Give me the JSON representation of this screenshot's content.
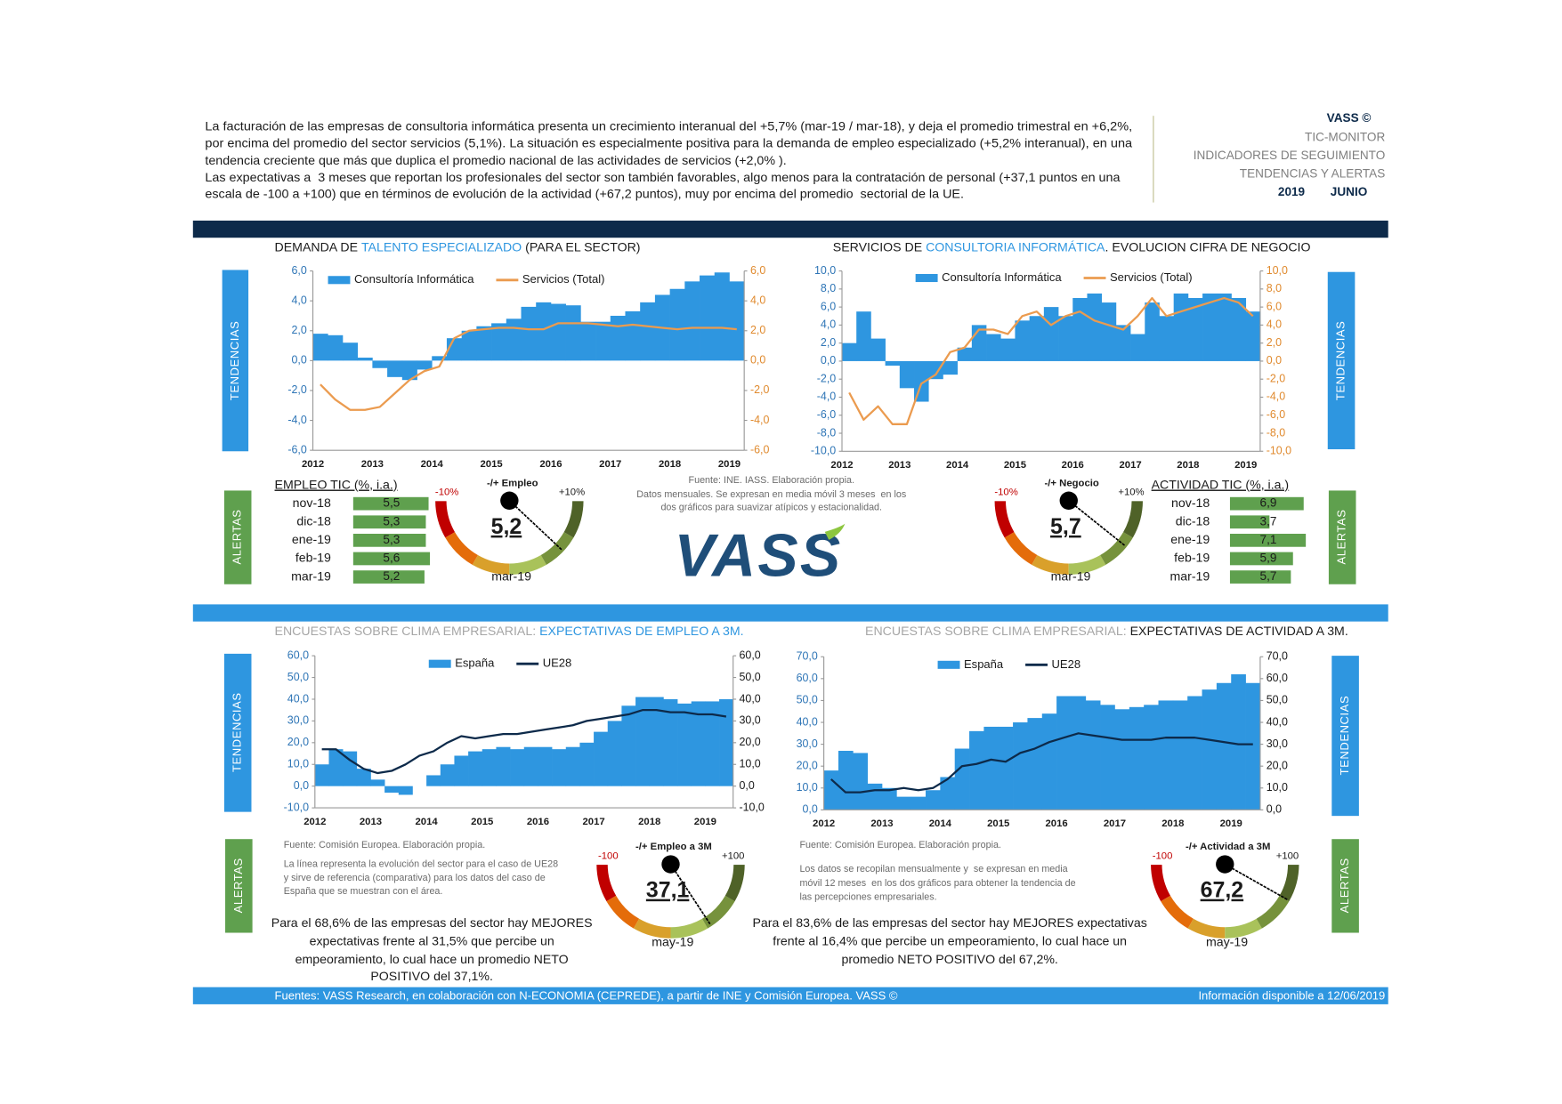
{
  "header": {
    "intro": [
      "La facturación de las empresas de consultoria informática presenta un crecimiento interanual del +5,7% (mar-19 / mar-18), y deja el promedio trimestral en +6,2%,",
      "por encima del promedio del sector servicios (5,1%). La situación es especialmente positiva para la demanda de empleo especializado (+5,2% interanual), en una",
      "tendencia creciente que más que duplica el promedio nacional de las actividades de servicios (+2,0% ).",
      "Las expectativas a  3 meses que reportan los profesionales del sector son también favorables, algo menos para la contratación de personal (+37,1 puntos en una",
      "escala de -100 a +100) que en términos de evolución de la actividad (+67,2 puntos), muy por encima del promedio  sectorial de la UE."
    ],
    "brand": "VASS ©",
    "lines": [
      "TIC-MONITOR",
      "INDICADORES DE SEGUIMIENTO",
      "TENDENCIAS Y ALERTAS"
    ],
    "year": "2019",
    "month": "JUNIO"
  },
  "side_labels": {
    "trend": "TENDENCIAS",
    "alert": "ALERTAS"
  },
  "logo": "VASS",
  "notes": {
    "top": [
      "Fuente: INE. IASS. Elaboración propia.",
      "Datos mensuales. Se expresan en media móvil 3 meses  en los",
      "dos gráficos para suavizar atípicos y estacionalidad."
    ],
    "left": [
      "Fuente: Comisión Europea. Elaboración propia.",
      "La línea representa la evolución del sector para el caso de UE28",
      "y sirve de referencia (comparativa) para los datos del caso de",
      "España que se muestran con el área."
    ],
    "right": [
      "Fuente: Comisión Europea. Elaboración propia.",
      "Los datos se recopilan mensualmente y  se expresan en media",
      "móvil 12 meses  en los dos gráficos para obtener la tendencia de",
      "las percepciones empresariales."
    ],
    "left_summary": [
      "Para el 68,6% de las empresas del sector hay MEJORES",
      "expectativas frente al 31,5% que percibe un",
      "empeoramiento, lo cual hace un promedio NETO",
      "POSITIVO del 37,1%."
    ],
    "right_summary": [
      "Para el 83,6% de las empresas del sector hay MEJORES expectativas",
      "frente al 16,4% que percibe un empeoramiento, lo cual hace un",
      "promedio NETO POSITIVO del 67,2%."
    ]
  },
  "footer": {
    "left": "Fuentes: VASS Research, en colaboración con N-ECONOMIA (CEPREDE), a partir de INE y Comisión Europea. VASS ©",
    "right": "Información disponible a 12/06/2019"
  },
  "chart_data": [
    {
      "type": "combo",
      "title": [
        "DEMANDA DE ",
        "TALENTO ESPECIALIZADO",
        " (PARA EL SECTOR)"
      ],
      "title_colors": [
        "#1a1a1a",
        "#2e96e0",
        "#1a1a1a"
      ],
      "categories": [
        "2012",
        null,
        null,
        null,
        "2013",
        null,
        null,
        null,
        "2014",
        null,
        null,
        null,
        "2015",
        null,
        null,
        null,
        "2016",
        null,
        null,
        null,
        "2017",
        null,
        null,
        null,
        "2018",
        null,
        null,
        null,
        "2019"
      ],
      "series": [
        {
          "name": "Consultoría Informática",
          "color": "#2e96e0",
          "kind": "bar",
          "values": [
            1.8,
            1.7,
            1.2,
            0.2,
            -0.5,
            -1.1,
            -1.3,
            -0.6,
            0.3,
            1.5,
            2.0,
            2.3,
            2.5,
            2.8,
            3.6,
            3.9,
            3.8,
            3.7,
            2.6,
            2.6,
            3.0,
            3.3,
            3.9,
            4.4,
            4.8,
            5.3,
            5.7,
            5.9,
            5.3
          ]
        },
        {
          "name": "Servicios (Total)",
          "color": "#eb9b4f",
          "kind": "line",
          "axis": "y2",
          "values": [
            -1.6,
            -2.6,
            -3.3,
            -3.3,
            -3.1,
            -2.2,
            -1.3,
            -0.7,
            -0.4,
            1.5,
            2.0,
            2.1,
            2.2,
            2.2,
            2.1,
            2.1,
            2.5,
            2.5,
            2.5,
            2.4,
            2.3,
            2.4,
            2.3,
            2.2,
            2.1,
            2.2,
            2.2,
            2.2,
            2.1
          ]
        }
      ],
      "ylim": [
        -6,
        6
      ],
      "yticks": [
        {
          "value": -6,
          "label": "-6,0"
        },
        {
          "value": -4,
          "label": "-4,0"
        },
        {
          "value": -2,
          "label": "-2,0"
        },
        {
          "value": 0,
          "label": "0,0"
        },
        {
          "value": 2,
          "label": "2,0"
        },
        {
          "value": 4,
          "label": "4,0"
        },
        {
          "value": 6,
          "label": "6,0"
        }
      ],
      "y2lim": [
        -6,
        6
      ],
      "y2ticks": [
        {
          "value": -6,
          "label": "-6,0"
        },
        {
          "value": -4,
          "label": "-4,0"
        },
        {
          "value": -2,
          "label": "-2,0"
        },
        {
          "value": 0,
          "label": "0,0"
        },
        {
          "value": 2,
          "label": "2,0"
        },
        {
          "value": 4,
          "label": "4,0"
        },
        {
          "value": 6,
          "label": "6,0"
        }
      ],
      "ytick_color": "#2e75b6",
      "y2tick_color": "#e08a2e",
      "legend": "top",
      "grid": false
    },
    {
      "type": "combo",
      "title": [
        "SERVICIOS DE ",
        "CONSULTORIA INFORMÁTICA",
        ". EVOLUCION CIFRA DE NEGOCIO"
      ],
      "title_colors": [
        "#1a1a1a",
        "#2e96e0",
        "#1a1a1a"
      ],
      "categories": [
        "2012",
        null,
        null,
        null,
        "2013",
        null,
        null,
        null,
        "2014",
        null,
        null,
        null,
        "2015",
        null,
        null,
        null,
        "2016",
        null,
        null,
        null,
        "2017",
        null,
        null,
        null,
        "2018",
        null,
        null,
        null,
        "2019"
      ],
      "series": [
        {
          "name": "Consultoría Informática",
          "color": "#2e96e0",
          "kind": "bar",
          "values": [
            2.0,
            5.5,
            2.5,
            -0.5,
            -3.0,
            -4.5,
            -2.0,
            -1.5,
            1.5,
            4.0,
            3.0,
            2.5,
            4.5,
            5.0,
            6.0,
            5.0,
            7.0,
            7.5,
            6.5,
            4.0,
            3.0,
            6.5,
            5.0,
            7.5,
            7.0,
            7.5,
            7.5,
            7.0,
            5.5
          ]
        },
        {
          "name": "Servicios (Total)",
          "color": "#eb9b4f",
          "kind": "line",
          "axis": "y2",
          "values": [
            -3.5,
            -6.5,
            -5.0,
            -7.0,
            -7.0,
            -2.5,
            -1.5,
            1.0,
            1.5,
            3.5,
            3.5,
            3.0,
            5.0,
            5.5,
            4.0,
            5.0,
            5.5,
            4.5,
            4.0,
            3.5,
            5.0,
            7.0,
            5.0,
            5.5,
            6.0,
            6.5,
            7.0,
            6.5,
            5.0
          ]
        }
      ],
      "ylim": [
        -10,
        10
      ],
      "yticks": [
        {
          "value": -10,
          "label": "-10,0"
        },
        {
          "value": -8,
          "label": "-8,0"
        },
        {
          "value": -6,
          "label": "-6,0"
        },
        {
          "value": -4,
          "label": "-4,0"
        },
        {
          "value": -2,
          "label": "-2,0"
        },
        {
          "value": 0,
          "label": "0,0"
        },
        {
          "value": 2,
          "label": "2,0"
        },
        {
          "value": 4,
          "label": "4,0"
        },
        {
          "value": 6,
          "label": "6,0"
        },
        {
          "value": 8,
          "label": "8,0"
        },
        {
          "value": 10,
          "label": "10,0"
        }
      ],
      "y2lim": [
        -10,
        10
      ],
      "y2ticks": [
        {
          "value": -10,
          "label": "-10,0"
        },
        {
          "value": -8,
          "label": "-8,0"
        },
        {
          "value": -6,
          "label": "-6,0"
        },
        {
          "value": -4,
          "label": "-4,0"
        },
        {
          "value": -2,
          "label": "-2,0"
        },
        {
          "value": 0,
          "label": "0,0"
        },
        {
          "value": 2,
          "label": "2,0"
        },
        {
          "value": 4,
          "label": "4,0"
        },
        {
          "value": 6,
          "label": "6,0"
        },
        {
          "value": 8,
          "label": "8,0"
        },
        {
          "value": 10,
          "label": "10,0"
        }
      ],
      "ytick_color": "#2e75b6",
      "y2tick_color": "#e08a2e",
      "legend": "top",
      "grid": false
    },
    {
      "type": "gauge",
      "title": "-/+ Empleo",
      "value": 5.2,
      "value_label": "5,2",
      "range": [
        {
          "value": -10,
          "label": "-10%"
        },
        {
          "value": 10,
          "label": "+10%"
        }
      ],
      "date": "mar-19"
    },
    {
      "type": "gauge",
      "title": "-/+ Negocio",
      "value": 5.7,
      "value_label": "5,7",
      "range": [
        {
          "value": -10,
          "label": "-10%"
        },
        {
          "value": 10,
          "label": "+10%"
        }
      ],
      "date": "mar-19"
    },
    {
      "type": "hbar",
      "title": "EMPLEO TIC (%, i.a.)",
      "categories": [
        "nov-18",
        "dic-18",
        "ene-19",
        "feb-19",
        "mar-19"
      ],
      "values": [
        5.5,
        5.3,
        5.3,
        5.6,
        5.2
      ],
      "value_labels": [
        "5,5",
        "5,3",
        "5,3",
        "5,6",
        "5,2"
      ],
      "color": "#5fa04e"
    },
    {
      "type": "hbar",
      "title": "ACTIVIDAD TIC (%, i.a.)",
      "categories": [
        "nov-18",
        "dic-18",
        "ene-19",
        "feb-19",
        "mar-19"
      ],
      "values": [
        6.9,
        3.7,
        7.1,
        5.9,
        5.7
      ],
      "value_labels": [
        "6,9",
        "3,7",
        "7,1",
        "5,9",
        "5,7"
      ],
      "color": "#5fa04e"
    },
    {
      "type": "combo",
      "title": [
        "ENCUESTAS SOBRE CLIMA EMPRESARIAL: ",
        "EXPECTATIVAS DE EMPLEO A 3M."
      ],
      "title_colors": [
        "#a6a6a6",
        "#2e96e0"
      ],
      "categories": [
        "2012",
        null,
        null,
        null,
        "2013",
        null,
        null,
        null,
        "2014",
        null,
        null,
        null,
        "2015",
        null,
        null,
        null,
        "2016",
        null,
        null,
        null,
        "2017",
        null,
        null,
        null,
        "2018",
        null,
        null,
        null,
        "2019",
        null
      ],
      "series": [
        {
          "name": "España",
          "color": "#2e96e0",
          "kind": "bar",
          "values": [
            10,
            17,
            16,
            8,
            3,
            -3,
            -4,
            0,
            5,
            10,
            14,
            16,
            17,
            18,
            17,
            18,
            18,
            17,
            18,
            20,
            25,
            30,
            37,
            41,
            41,
            40,
            38,
            39,
            39,
            40
          ]
        },
        {
          "name": "UE28",
          "color": "#0d2a4a",
          "kind": "line",
          "values": [
            17,
            17,
            12,
            8,
            6,
            7,
            10,
            14,
            16,
            20,
            23,
            22,
            23,
            24,
            24,
            25,
            26,
            27,
            28,
            30,
            31,
            32,
            33,
            35,
            35,
            34,
            34,
            33,
            33,
            32
          ]
        }
      ],
      "ylim": [
        -10,
        60
      ],
      "yticks": [
        {
          "value": -10,
          "label": "-10,0"
        },
        {
          "value": 0,
          "label": "0,0"
        },
        {
          "value": 10,
          "label": "10,0"
        },
        {
          "value": 20,
          "label": "20,0"
        },
        {
          "value": 30,
          "label": "30,0"
        },
        {
          "value": 40,
          "label": "40,0"
        },
        {
          "value": 50,
          "label": "50,0"
        },
        {
          "value": 60,
          "label": "60,0"
        }
      ],
      "y2lim": [
        -10,
        60
      ],
      "y2ticks": [
        {
          "value": -10,
          "label": "-10,0"
        },
        {
          "value": 0,
          "label": "0,0"
        },
        {
          "value": 10,
          "label": "10,0"
        },
        {
          "value": 20,
          "label": "20,0"
        },
        {
          "value": 30,
          "label": "30,0"
        },
        {
          "value": 40,
          "label": "40,0"
        },
        {
          "value": 50,
          "label": "50,0"
        },
        {
          "value": 60,
          "label": "60,0"
        }
      ],
      "ytick_color": "#2e75b6",
      "y2tick_color": "#1a1a1a",
      "legend": "top",
      "grid": false
    },
    {
      "type": "combo",
      "title": [
        "ENCUESTAS SOBRE CLIMA EMPRESARIAL: ",
        "EXPECTATIVAS DE ACTIVIDAD A 3M."
      ],
      "title_colors": [
        "#a6a6a6",
        "#1a1a1a"
      ],
      "categories": [
        "2012",
        null,
        null,
        null,
        "2013",
        null,
        null,
        null,
        "2014",
        null,
        null,
        null,
        "2015",
        null,
        null,
        null,
        "2016",
        null,
        null,
        null,
        "2017",
        null,
        null,
        null,
        "2018",
        null,
        null,
        null,
        "2019",
        null
      ],
      "series": [
        {
          "name": "España",
          "color": "#2e96e0",
          "kind": "bar",
          "values": [
            18,
            27,
            26,
            12,
            10,
            6,
            6,
            9,
            15,
            28,
            36,
            38,
            38,
            40,
            42,
            44,
            52,
            52,
            50,
            48,
            46,
            47,
            48,
            50,
            50,
            52,
            55,
            58,
            62,
            58
          ]
        },
        {
          "name": "UE28",
          "color": "#0d2a4a",
          "kind": "line",
          "values": [
            14,
            8,
            8,
            9,
            9,
            10,
            9,
            10,
            14,
            20,
            21,
            23,
            22,
            26,
            28,
            31,
            33,
            35,
            34,
            33,
            32,
            32,
            32,
            33,
            33,
            33,
            32,
            31,
            30,
            30
          ]
        }
      ],
      "ylim": [
        0,
        70
      ],
      "yticks": [
        {
          "value": 0,
          "label": "0,0"
        },
        {
          "value": 10,
          "label": "10,0"
        },
        {
          "value": 20,
          "label": "20,0"
        },
        {
          "value": 30,
          "label": "30,0"
        },
        {
          "value": 40,
          "label": "40,0"
        },
        {
          "value": 50,
          "label": "50,0"
        },
        {
          "value": 60,
          "label": "60,0"
        },
        {
          "value": 70,
          "label": "70,0"
        }
      ],
      "y2lim": [
        0,
        70
      ],
      "y2ticks": [
        {
          "value": 0,
          "label": "0,0"
        },
        {
          "value": 10,
          "label": "10,0"
        },
        {
          "value": 20,
          "label": "20,0"
        },
        {
          "value": 30,
          "label": "30,0"
        },
        {
          "value": 40,
          "label": "40,0"
        },
        {
          "value": 50,
          "label": "50,0"
        },
        {
          "value": 60,
          "label": "60,0"
        },
        {
          "value": 70,
          "label": "70,0"
        }
      ],
      "ytick_color": "#2e75b6",
      "y2tick_color": "#1a1a1a",
      "legend": "top",
      "grid": false
    },
    {
      "type": "gauge",
      "title": "-/+ Empleo a 3M",
      "value": 37.1,
      "value_label": "37,1",
      "range": [
        {
          "value": -100,
          "label": "-100"
        },
        {
          "value": 100,
          "label": "+100"
        }
      ],
      "date": "may-19"
    },
    {
      "type": "gauge",
      "title": "-/+ Actividad a 3M",
      "value": 67.2,
      "value_label": "67,2",
      "range": [
        {
          "value": -100,
          "label": "-100"
        },
        {
          "value": 100,
          "label": "+100"
        }
      ],
      "date": "may-19"
    }
  ]
}
